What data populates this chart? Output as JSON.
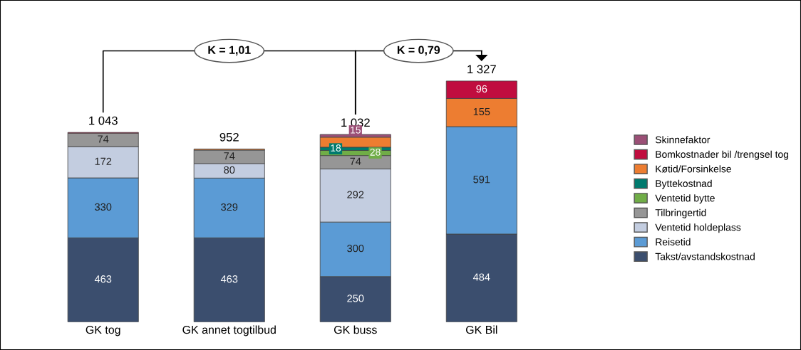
{
  "chart_data": {
    "type": "bar",
    "stacked": true,
    "data_labels": false,
    "legend": "right",
    "grid": false,
    "categories": [
      "GK tog",
      "GK annet togtilbud",
      "GK buss",
      "GK Bil"
    ],
    "series": [
      {
        "name": "Takst/avstandskostnad",
        "color": "#3b4e6e",
        "values": [
          463,
          463,
          250,
          484
        ],
        "value_labels": [
          "463",
          "463",
          "250",
          "484"
        ]
      },
      {
        "name": "Reisetid",
        "color": "#5b9bd5",
        "values": [
          330,
          329,
          300,
          591
        ],
        "value_labels": [
          "330",
          "329",
          "300",
          "591"
        ]
      },
      {
        "name": "Ventetid holdeplass",
        "color": "#c3cde0",
        "values": [
          172,
          80,
          292,
          null
        ],
        "value_labels": [
          "172",
          "80",
          "292",
          null
        ]
      },
      {
        "name": "Tilbringertid",
        "color": "#969696",
        "values": [
          74,
          74,
          74,
          null
        ],
        "value_labels": [
          "74",
          "74",
          "74",
          null
        ]
      },
      {
        "name": "Ventetid bytte",
        "color": "#70ad47",
        "values": [
          null,
          null,
          28,
          null
        ],
        "value_labels": [
          null,
          null,
          "28",
          null
        ]
      },
      {
        "name": "Byttekostnad",
        "color": "#007a6e",
        "values": [
          null,
          null,
          18,
          null
        ],
        "value_labels": [
          null,
          null,
          "18",
          null
        ]
      },
      {
        "name": "Køtid/Forsinkelse",
        "color": "#ed7d31",
        "values": [
          null,
          6,
          55,
          155
        ],
        "value_labels": [
          null,
          null,
          null,
          "155"
        ]
      },
      {
        "name": "Bomkostnader bil /trengsel tog",
        "color": "#c00d3f",
        "values": [
          4,
          null,
          null,
          96
        ],
        "value_labels": [
          null,
          null,
          null,
          "96"
        ]
      },
      {
        "name": "Skinnefaktor",
        "color": "#9b4f76",
        "values": [
          null,
          null,
          15,
          null
        ],
        "value_labels": [
          null,
          null,
          "15",
          null
        ]
      }
    ],
    "totals": [
      "1 043",
      "952",
      "1 032",
      "1 327"
    ],
    "annotations": [
      "K = 1,01",
      "K = 0,79"
    ]
  }
}
